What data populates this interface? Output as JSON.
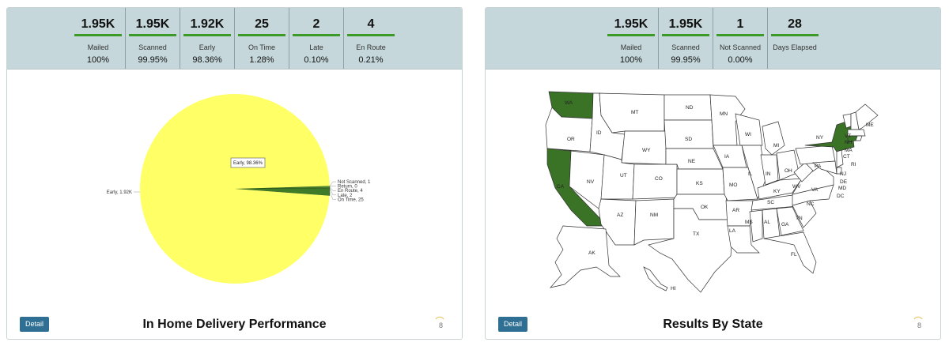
{
  "left_panel": {
    "stats": [
      {
        "value": "1.95K",
        "label": "Mailed",
        "pct": "100%"
      },
      {
        "value": "1.95K",
        "label": "Scanned",
        "pct": "99.95%"
      },
      {
        "value": "1.92K",
        "label": "Early",
        "pct": "98.36%"
      },
      {
        "value": "25",
        "label": "On Time",
        "pct": "1.28%"
      },
      {
        "value": "2",
        "label": "Late",
        "pct": "0.10%"
      },
      {
        "value": "4",
        "label": "En Route",
        "pct": "0.21%"
      }
    ],
    "title": "In Home Delivery Performance",
    "detail_label": "Detail",
    "spinner_text": "8"
  },
  "right_panel": {
    "stats": [
      {
        "value": "1.95K",
        "label": "Mailed",
        "pct": "100%"
      },
      {
        "value": "1.95K",
        "label": "Scanned",
        "pct": "99.95%"
      },
      {
        "value": "1",
        "label": "Not Scanned",
        "pct": "0.00%"
      },
      {
        "value": "28",
        "label": "Days Elapsed",
        "pct": ""
      }
    ],
    "title": "Results By State",
    "detail_label": "Detail",
    "spinner_text": "8",
    "highlighted_states": [
      "WA",
      "CA",
      "NY",
      "CT"
    ],
    "state_labels": [
      "MT",
      "ND",
      "MN",
      "ME",
      "VT",
      "NH",
      "MA",
      "RI",
      "CT",
      "NJ",
      "DE",
      "MD",
      "DC",
      "WA",
      "OR",
      "ID",
      "SD",
      "WI",
      "MI",
      "NY",
      "PA",
      "WY",
      "NE",
      "IA",
      "IL",
      "IN",
      "OH",
      "WV",
      "VA",
      "NV",
      "UT",
      "CO",
      "KS",
      "MO",
      "KY",
      "NC",
      "TN",
      "SC",
      "AZ",
      "NM",
      "OK",
      "AR",
      "MS",
      "AL",
      "GA",
      "TX",
      "LA",
      "FL",
      "AK",
      "HI",
      "CA"
    ]
  },
  "colors": {
    "accent": "#3c9a28",
    "pie_early": "#ffff66",
    "pie_ontime": "#3f7a28",
    "stats_bg": "#c5d7da",
    "detail_btn": "#2f6f94",
    "state_highlight": "#3a7226"
  },
  "chart_data": {
    "type": "pie",
    "slices": [
      {
        "label": "Early",
        "value": 1920,
        "display": "Early, 1.92K"
      },
      {
        "label": "Not Scanned",
        "value": 1,
        "display": "Not Scanned, 1"
      },
      {
        "label": "Return",
        "value": 0,
        "display": "Return, 0"
      },
      {
        "label": "En Route",
        "value": 4,
        "display": "En Route, 4"
      },
      {
        "label": "Late",
        "value": 2,
        "display": "Late, 2"
      },
      {
        "label": "On Time",
        "value": 25,
        "display": "On Time, 25"
      }
    ],
    "tooltip": "Early, 98.36%"
  }
}
